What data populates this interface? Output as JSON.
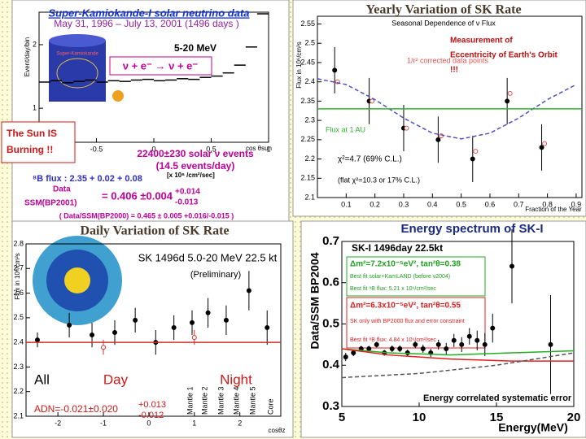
{
  "chart_data": [
    {
      "type": "histogram",
      "title": "Super-Kamiokande-I solar neutrino data",
      "subtitle": "May 31, 1996 – July 13, 2001 (1496 days )",
      "y_label": "Event/day/bin",
      "x_label": "cos θsun",
      "log_y": true,
      "ylim": [
        0.69,
        2.85
      ],
      "yticks": [
        1,
        2
      ],
      "xlim": [
        -1,
        1
      ],
      "xticks": [
        -0.5,
        0,
        0.5,
        1
      ],
      "color": "#000000",
      "bins": [
        -1,
        -0.9,
        -0.8,
        -0.7,
        -0.6,
        -0.5,
        -0.4,
        -0.3,
        -0.2,
        -0.1,
        0,
        0.1,
        0.2,
        0.3,
        0.4,
        0.5,
        0.6,
        0.7,
        0.8,
        0.9,
        1
      ],
      "values": [
        1.33,
        1.35,
        1.32,
        1.34,
        1.36,
        1.33,
        1.35,
        1.34,
        1.36,
        1.37,
        1.35,
        1.36,
        1.38,
        1.37,
        1.4,
        1.42,
        1.47,
        1.6,
        1.95,
        2.8
      ],
      "annotations": [
        "Super-Kamiokande",
        "5-20 MeV",
        "ν + e⁻ → ν + e⁻",
        "22400±230 solar ν events",
        "(14.5 events/day)",
        "⁸B flux : 2.35 + 0.02 + 0.08",
        "[x 10⁶ /cm²/sec]",
        "Data",
        "SSM(BP2001)",
        "= 0.406 ±0.004",
        "+0.014",
        "-0.013",
        "( Data/SSM(BP2000) = 0.465 ± 0.005 +0.016/-0.015 )"
      ],
      "callout": [
        "The Sun IS",
        "Burning !!"
      ]
    },
    {
      "type": "scatter",
      "title": "Yearly Variation of SK Rate",
      "subtitle": "Seasonal Dependence of ν Flux",
      "y_label": "Flux in 10⁶/cm²s",
      "x_label": "Fraction of the Year",
      "xlim": [
        0,
        0.92
      ],
      "xticks": [
        0.1,
        0.2,
        0.3,
        0.4,
        0.5,
        0.6,
        0.7,
        0.8,
        0.9
      ],
      "ylim": [
        2.1,
        2.57
      ],
      "yticks": [
        2.1,
        2.15,
        2.2,
        2.25,
        2.3,
        2.35,
        2.4,
        2.45,
        2.5,
        2.55
      ],
      "series": [
        {
          "color": "#000000",
          "marker": "filled",
          "x": [
            0.06,
            0.18,
            0.3,
            0.42,
            0.54,
            0.66,
            0.78
          ],
          "values": [
            2.43,
            2.35,
            2.28,
            2.25,
            2.2,
            2.35,
            2.23
          ],
          "errors": [
            0.06,
            0.06,
            0.06,
            0.06,
            0.06,
            0.06,
            0.06
          ]
        },
        {
          "name": "1/r² corrected data points",
          "color": "#e05050",
          "marker": "open",
          "x": [
            0.07,
            0.19,
            0.31,
            0.43,
            0.55,
            0.67,
            0.79
          ],
          "values": [
            2.4,
            2.35,
            2.28,
            2.26,
            2.22,
            2.37,
            2.24
          ]
        },
        {
          "color": "#5050c0",
          "style": "dashed",
          "x": [
            0,
            0.1,
            0.2,
            0.3,
            0.4,
            0.5,
            0.6,
            0.7,
            0.8,
            0.9
          ],
          "values": [
            2.408,
            2.393,
            2.354,
            2.306,
            2.267,
            2.252,
            2.267,
            2.306,
            2.354,
            2.393
          ]
        },
        {
          "name": "Flux at 1 AU",
          "color": "#30b030",
          "style": "line",
          "x": [
            0,
            0.92
          ],
          "values": [
            2.33,
            2.33
          ]
        }
      ],
      "annotations": [
        "χ²=4.7 (69% C.L.)",
        "(flat χ²=10.3 or 17% C.L.)"
      ],
      "callout": [
        "Measurement of",
        "Eccentricity of Earth's Orbit",
        "!!!"
      ]
    },
    {
      "type": "scatter",
      "title": "Daily Variation of SK Rate",
      "y_label": "Flux in 10⁶/cm²s",
      "x_label": "cosθz",
      "xlim": [
        -2.7,
        2.9
      ],
      "xticks": [
        -2,
        -1,
        0,
        1,
        2
      ],
      "ylim": [
        2.1,
        2.8
      ],
      "yticks": [
        2.1,
        2.2,
        2.3,
        2.4,
        2.5,
        2.6,
        2.7,
        2.8
      ],
      "series": [
        {
          "color": "#000000",
          "marker": "filled",
          "x": [
            -2.45,
            -1.75,
            -1.25,
            -0.75,
            -0.3,
            0.15,
            0.55,
            0.95,
            1.3,
            1.7,
            2.2,
            2.6
          ],
          "values": [
            2.41,
            2.47,
            2.43,
            2.44,
            2.49,
            2.4,
            2.46,
            2.48,
            2.52,
            2.49,
            2.61,
            2.46
          ],
          "errors": [
            0.03,
            0.05,
            0.05,
            0.05,
            0.05,
            0.05,
            0.05,
            0.05,
            0.06,
            0.06,
            0.08,
            0.07
          ]
        },
        {
          "color": "#d03030",
          "style": "line",
          "x": [
            -2.7,
            2.9
          ],
          "values": [
            2.4,
            2.4
          ]
        },
        {
          "color": "#d03030",
          "marker": "open",
          "x": [
            -1,
            1
          ],
          "values": [
            2.38,
            2.42
          ],
          "errors": [
            0.03,
            0.03
          ]
        }
      ],
      "annotations": [
        "SK 1496d 5.0-20 MeV 22.5 kt",
        "(Preliminary)",
        "All",
        "Day",
        "Night",
        "ADN=-0.021±0.020",
        "+0.013",
        "-0.012",
        "Mantle 1",
        "Mantle 2",
        "Mantle 3",
        "Mantle 4",
        "Mantle 5",
        "Core"
      ]
    },
    {
      "type": "scatter",
      "title": "Energy spectrum of SK-I",
      "y_label": "Data/SSM BP2004",
      "x_label": "Energy(MeV)",
      "xlim": [
        5,
        20
      ],
      "xticks": [
        5,
        10,
        15,
        20
      ],
      "ylim": [
        0.3,
        0.7
      ],
      "yticks": [
        0.3,
        0.4,
        0.5,
        0.6,
        0.7
      ],
      "series": [
        {
          "color": "#000000",
          "marker": "filled",
          "x": [
            5.25,
            5.75,
            6.25,
            6.75,
            7.25,
            7.75,
            8.25,
            8.75,
            9.25,
            9.75,
            10.25,
            10.75,
            11.25,
            11.75,
            12.25,
            12.75,
            13.25,
            13.75,
            14.25,
            14.75,
            16,
            18.5
          ],
          "values": [
            0.42,
            0.43,
            0.44,
            0.44,
            0.45,
            0.43,
            0.44,
            0.44,
            0.43,
            0.45,
            0.44,
            0.43,
            0.45,
            0.44,
            0.46,
            0.45,
            0.47,
            0.46,
            0.45,
            0.49,
            0.64,
            0.45
          ],
          "errors": [
            0.01,
            0.008,
            0.007,
            0.007,
            0.007,
            0.007,
            0.008,
            0.008,
            0.008,
            0.009,
            0.01,
            0.01,
            0.012,
            0.014,
            0.016,
            0.018,
            0.02,
            0.024,
            0.028,
            0.035,
            0.09,
            0.12
          ]
        },
        {
          "color": "#20b020",
          "style": "line",
          "x": [
            5,
            8,
            12,
            16,
            20
          ],
          "values": [
            0.44,
            0.43,
            0.425,
            0.43,
            0.435
          ]
        },
        {
          "color": "#e02020",
          "style": "line",
          "x": [
            5,
            8,
            12,
            16,
            20
          ],
          "values": [
            0.44,
            0.425,
            0.415,
            0.41,
            0.41
          ]
        },
        {
          "name": "Energy correlated systematic error",
          "color": "#555555",
          "style": "dashed",
          "x": [
            5,
            10,
            15,
            20
          ],
          "values": [
            0.37,
            0.38,
            0.4,
            0.43
          ]
        }
      ],
      "annotations": [
        "SK-I  1496day  22.5kt",
        "Δm²=7.2x10⁻⁵eV², tan²θ=0.38",
        "Best fit solar+KamLAND (before ν2004)",
        "Best fit ⁸B flux: 5.21 x 10⁶/cm²/sec",
        "Δm²=6.3x10⁻⁵eV², tan²θ=0.55",
        "SK only with BP2000 flux and error constraint",
        "Best fit ⁸B flux: 4.84 x 10⁶/cm²/sec"
      ]
    }
  ]
}
